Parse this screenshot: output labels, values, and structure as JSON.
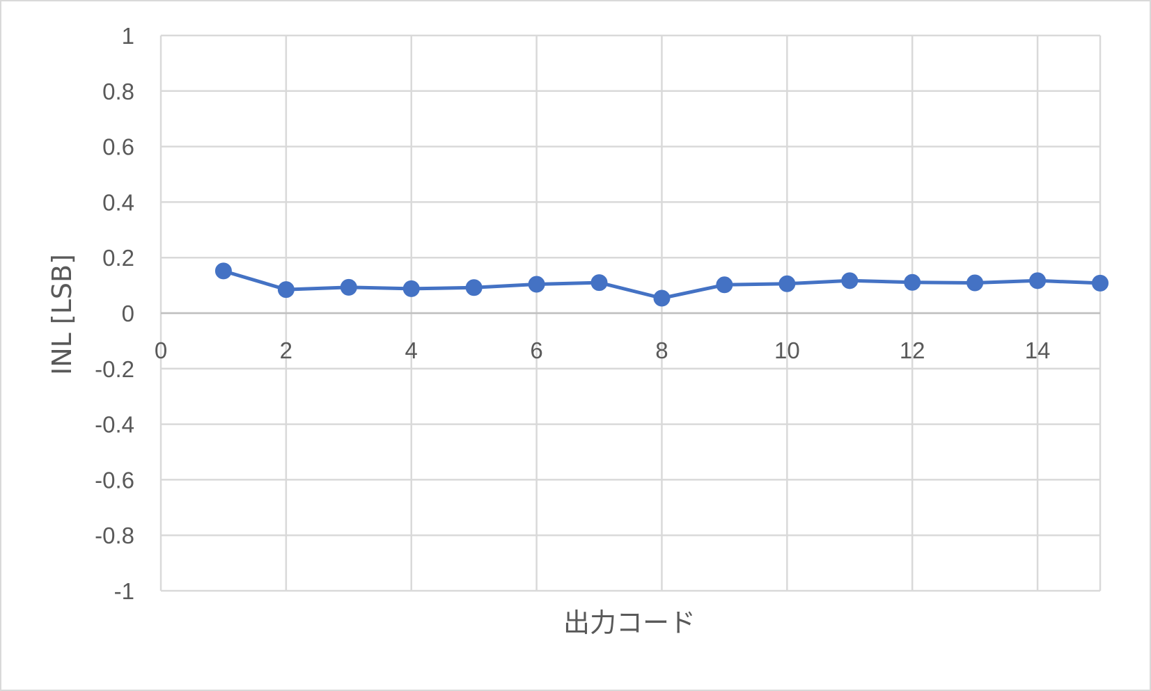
{
  "chart_data": {
    "type": "scatter",
    "title": "",
    "xlabel": "出力コード",
    "ylabel": "INL [LSB]",
    "xlim": [
      0,
      15
    ],
    "ylim": [
      -1,
      1
    ],
    "x_ticks": [
      0,
      2,
      4,
      6,
      8,
      10,
      12,
      14
    ],
    "y_ticks": [
      -1,
      -0.8,
      -0.6,
      -0.4,
      -0.2,
      0,
      0.2,
      0.4,
      0.6,
      0.8,
      1
    ],
    "grid": true,
    "series": [
      {
        "color": "#4472c4",
        "marker": "circle",
        "x": [
          1,
          2,
          3,
          4,
          5,
          6,
          7,
          8,
          9,
          10,
          11,
          12,
          13,
          14,
          15
        ],
        "y": [
          0.152,
          0.085,
          0.093,
          0.088,
          0.092,
          0.104,
          0.11,
          0.054,
          0.102,
          0.106,
          0.117,
          0.111,
          0.109,
          0.117,
          0.108
        ]
      }
    ]
  }
}
